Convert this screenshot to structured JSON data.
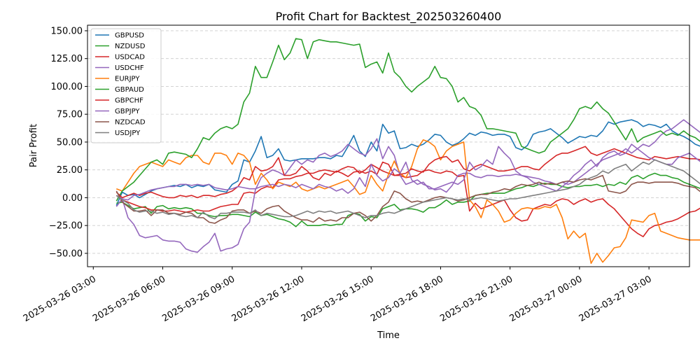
{
  "chart_data": {
    "type": "line",
    "title": "Profit Chart for Backtest_202503260400",
    "xlabel": "Time",
    "ylabel": "Pair Profit",
    "x_start": "2025-03-26 04:00",
    "x_step_minutes": 15,
    "xlim": [
      "2025-03-26 02:45",
      "2025-03-27 04:45"
    ],
    "ylim": [
      -62,
      155
    ],
    "x_ticks": [
      {
        "label": "2025-03-26 03:00",
        "time": "2025-03-26 03:00"
      },
      {
        "label": "2025-03-26 06:00",
        "time": "2025-03-26 06:00"
      },
      {
        "label": "2025-03-26 09:00",
        "time": "2025-03-26 09:00"
      },
      {
        "label": "2025-03-26 12:00",
        "time": "2025-03-26 12:00"
      },
      {
        "label": "2025-03-26 15:00",
        "time": "2025-03-26 15:00"
      },
      {
        "label": "2025-03-26 18:00",
        "time": "2025-03-26 18:00"
      },
      {
        "label": "2025-03-26 21:00",
        "time": "2025-03-26 21:00"
      },
      {
        "label": "2025-03-27 00:00",
        "time": "2025-03-27 00:00"
      },
      {
        "label": "2025-03-27 03:00",
        "time": "2025-03-27 03:00"
      }
    ],
    "y_ticks": [
      {
        "label": "150.00",
        "value": 150
      },
      {
        "label": "125.00",
        "value": 125
      },
      {
        "label": "100.00",
        "value": 100
      },
      {
        "label": "75.00",
        "value": 75
      },
      {
        "label": "50.00",
        "value": 50
      },
      {
        "label": "25.00",
        "value": 25
      },
      {
        "label": "0.00",
        "value": 0
      },
      {
        "label": "−25.00",
        "value": -25
      },
      {
        "label": "−50.00",
        "value": -50
      }
    ],
    "grid": "y-dashed",
    "legend_position": "top-left",
    "series": [
      {
        "name": "GBPUSD",
        "color": "#1f77b4",
        "values": [
          -7,
          5,
          2,
          3,
          0,
          3,
          6,
          8,
          9,
          10,
          11,
          10,
          12,
          9,
          11,
          10,
          12,
          7,
          6,
          5,
          12,
          15,
          34,
          32,
          42,
          55,
          36,
          38,
          44,
          34,
          33,
          34,
          35,
          35,
          35,
          36,
          36,
          35,
          38,
          37,
          46,
          56,
          42,
          37,
          50,
          42,
          66,
          58,
          60,
          44,
          45,
          48,
          46,
          48,
          52,
          57,
          56,
          50,
          47,
          49,
          53,
          58,
          56,
          59,
          58,
          56,
          57,
          57,
          55,
          45,
          43,
          47,
          57,
          59,
          60,
          62,
          58,
          54,
          49,
          52,
          55,
          54,
          56,
          55,
          60,
          68,
          66,
          68,
          69,
          70,
          68,
          64,
          66,
          65,
          63,
          66,
          60,
          57,
          55,
          52,
          48,
          46,
          48,
          43
        ]
      },
      {
        "name": "NZDUSD",
        "color": "#2ca02c",
        "values": [
          -5,
          -4,
          -7,
          -10,
          -9,
          -8,
          -14,
          -8,
          -7,
          -10,
          -9,
          -10,
          -9,
          -10,
          -14,
          -14,
          -16,
          -17,
          -16,
          -16,
          -15,
          -15,
          -16,
          -17,
          -13,
          -16,
          -15,
          -17,
          -19,
          -20,
          -22,
          -26,
          -21,
          -25,
          -25,
          -25,
          -24,
          -25,
          -24,
          -24,
          -16,
          -14,
          -15,
          -21,
          -17,
          -18,
          -10,
          -8,
          -6,
          -11,
          -10,
          -10,
          -11,
          -13,
          -9,
          -9,
          -6,
          -2,
          -6,
          -4,
          -4,
          -3,
          2,
          3,
          4,
          4,
          4,
          4,
          6,
          8,
          9,
          11,
          10,
          12,
          13,
          12,
          12,
          10,
          9,
          10,
          10,
          11,
          11,
          12,
          10,
          12,
          11,
          14,
          12,
          18,
          20,
          17,
          20,
          22,
          20,
          20,
          18,
          17,
          14,
          12,
          10,
          8,
          6,
          5
        ]
      },
      {
        "name": "USDCAD",
        "color": "#d62728",
        "values": [
          2,
          -2,
          -4,
          -6,
          -8,
          -9,
          -11,
          -11,
          -12,
          -12,
          -11,
          -12,
          -13,
          -12,
          -11,
          -12,
          -12,
          -10,
          -8,
          -7,
          -6,
          -6,
          4,
          5,
          4,
          8,
          10,
          9,
          16,
          17,
          17,
          19,
          20,
          22,
          22,
          24,
          25,
          24,
          23,
          26,
          28,
          27,
          22,
          25,
          30,
          27,
          24,
          22,
          20,
          20,
          18,
          19,
          20,
          24,
          25,
          23,
          22,
          24,
          23,
          19,
          20,
          -12,
          -5,
          -10,
          -8,
          -6,
          -4,
          -2,
          -11,
          -18,
          -21,
          -20,
          -10,
          -8,
          -6,
          -7,
          -3,
          -1,
          -2,
          -6,
          -3,
          -1,
          -4,
          -2,
          -1,
          -6,
          -10,
          -16,
          -22,
          -28,
          -32,
          -35,
          -28,
          -25,
          -24,
          -22,
          -21,
          -19,
          -16,
          -13,
          -12,
          -9,
          -7,
          -5
        ]
      },
      {
        "name": "USDCHF",
        "color": "#9467bd",
        "values": [
          -8,
          -1,
          -18,
          -24,
          -34,
          -36,
          -35,
          -34,
          -38,
          -39,
          -39,
          -40,
          -46,
          -48,
          -49,
          -44,
          -40,
          -32,
          -48,
          -46,
          -45,
          -42,
          -28,
          -22,
          7,
          18,
          22,
          25,
          23,
          20,
          27,
          34,
          30,
          34,
          32,
          38,
          40,
          37,
          39,
          42,
          48,
          44,
          40,
          38,
          44,
          53,
          35,
          46,
          38,
          20,
          12,
          14,
          16,
          12,
          10,
          7,
          8,
          5,
          11,
          20,
          22,
          22,
          19,
          18,
          20,
          20,
          19,
          20,
          20,
          21,
          20,
          19,
          18,
          17,
          15,
          14,
          12,
          14,
          12,
          14,
          18,
          22,
          26,
          30,
          34,
          36,
          38,
          40,
          44,
          40,
          44,
          48,
          46,
          50,
          56,
          60,
          62,
          66,
          70,
          66,
          62,
          58,
          60,
          59
        ]
      },
      {
        "name": "EURJPY",
        "color": "#ff7f0e",
        "values": [
          8,
          6,
          14,
          22,
          28,
          30,
          32,
          30,
          28,
          34,
          32,
          30,
          36,
          38,
          38,
          32,
          30,
          40,
          40,
          38,
          30,
          40,
          38,
          32,
          12,
          22,
          16,
          8,
          14,
          12,
          10,
          14,
          8,
          6,
          8,
          10,
          8,
          10,
          12,
          14,
          16,
          10,
          3,
          5,
          20,
          12,
          6,
          21,
          33,
          22,
          18,
          28,
          44,
          52,
          50,
          46,
          34,
          42,
          46,
          48,
          50,
          -2,
          -8,
          -18,
          -2,
          -6,
          -12,
          -22,
          -20,
          -14,
          -10,
          -9,
          -10,
          -10,
          -8,
          -9,
          -6,
          -18,
          -37,
          -30,
          -36,
          -32,
          -59,
          -50,
          -58,
          -52,
          -45,
          -44,
          -36,
          -20,
          -21,
          -22,
          -16,
          -14,
          -30,
          -32,
          -34,
          -36,
          -37,
          -38,
          -38,
          -38,
          -38,
          -37
        ]
      },
      {
        "name": "GBPAUD",
        "color": "#2ca02c",
        "values": [
          -3,
          6,
          10,
          14,
          20,
          26,
          32,
          34,
          30,
          40,
          41,
          40,
          39,
          36,
          44,
          54,
          52,
          58,
          62,
          64,
          62,
          66,
          86,
          94,
          118,
          108,
          108,
          122,
          137,
          124,
          130,
          143,
          142,
          125,
          140,
          142,
          141,
          140,
          140,
          139,
          138,
          137,
          138,
          117,
          120,
          122,
          112,
          130,
          113,
          108,
          100,
          95,
          100,
          104,
          108,
          118,
          108,
          107,
          100,
          86,
          90,
          82,
          80,
          74,
          62,
          62,
          61,
          60,
          59,
          58,
          46,
          44,
          42,
          40,
          42,
          50,
          54,
          58,
          62,
          70,
          80,
          82,
          80,
          86,
          80,
          76,
          68,
          60,
          52,
          62,
          50,
          54,
          56,
          58,
          60,
          56,
          58,
          56,
          60,
          56,
          54,
          50,
          48,
          46
        ]
      },
      {
        "name": "GBPCHF",
        "color": "#d62728",
        "values": [
          5,
          0,
          2,
          4,
          2,
          4,
          5,
          3,
          1,
          0,
          0,
          2,
          1,
          2,
          0,
          2,
          2,
          1,
          3,
          4,
          6,
          10,
          18,
          16,
          28,
          24,
          25,
          28,
          36,
          20,
          20,
          22,
          28,
          24,
          18,
          16,
          22,
          20,
          24,
          22,
          19,
          23,
          24,
          22,
          24,
          21,
          32,
          30,
          20,
          21,
          22,
          26,
          24,
          23,
          30,
          34,
          36,
          37,
          32,
          34,
          26,
          24,
          28,
          30,
          28,
          26,
          24,
          24,
          25,
          26,
          28,
          28,
          26,
          25,
          30,
          34,
          38,
          40,
          40,
          42,
          44,
          46,
          40,
          38,
          40,
          42,
          44,
          42,
          40,
          38,
          36,
          35,
          34,
          37,
          36,
          35,
          36,
          37,
          36,
          35,
          35,
          34,
          33,
          32
        ]
      },
      {
        "name": "GBPJPY",
        "color": "#9467bd",
        "values": [
          2,
          -1,
          -2,
          2,
          3,
          5,
          7,
          8,
          9,
          10,
          10,
          12,
          12,
          11,
          12,
          11,
          12,
          9,
          8,
          7,
          8,
          10,
          9,
          8,
          8,
          10,
          11,
          12,
          10,
          12,
          11,
          9,
          12,
          10,
          8,
          12,
          10,
          9,
          6,
          8,
          4,
          8,
          18,
          10,
          30,
          20,
          15,
          18,
          26,
          22,
          32,
          16,
          12,
          14,
          8,
          8,
          10,
          12,
          14,
          12,
          16,
          32,
          25,
          28,
          34,
          30,
          46,
          40,
          35,
          24,
          20,
          18,
          14,
          12,
          10,
          8,
          6,
          10,
          14,
          20,
          24,
          30,
          34,
          28,
          36,
          40,
          42,
          38,
          40,
          48,
          44,
          40,
          36,
          34,
          32,
          30,
          30,
          36,
          38,
          40,
          36,
          32,
          30,
          28
        ]
      },
      {
        "name": "NZDCAD",
        "color": "#8c564b",
        "values": [
          6,
          -4,
          -8,
          -12,
          -12,
          -11,
          -16,
          -11,
          -11,
          -14,
          -14,
          -15,
          -13,
          -14,
          -18,
          -18,
          -22,
          -23,
          -20,
          -18,
          -12,
          -11,
          -11,
          -14,
          -12,
          -14,
          -10,
          -8,
          -7,
          -12,
          -15,
          -18,
          -20,
          -20,
          -22,
          -18,
          -21,
          -20,
          -21,
          -18,
          -18,
          -14,
          -13,
          -16,
          -21,
          -16,
          -8,
          -4,
          6,
          4,
          -1,
          -4,
          -3,
          -4,
          -2,
          0,
          1,
          0,
          -1,
          -3,
          -2,
          0,
          2,
          3,
          3,
          5,
          6,
          8,
          7,
          10,
          12,
          11,
          12,
          14,
          12,
          13,
          12,
          14,
          15,
          14,
          16,
          17,
          16,
          18,
          20,
          6,
          5,
          4,
          6,
          12,
          14,
          14,
          13,
          14,
          14,
          14,
          14,
          13,
          11,
          10,
          9,
          5,
          6,
          6
        ]
      },
      {
        "name": "USDJPY",
        "color": "#7f7f7f",
        "values": [
          2,
          -2,
          -5,
          -11,
          -13,
          -12,
          -12,
          -14,
          -13,
          -15,
          -14,
          -16,
          -17,
          -16,
          -18,
          -13,
          -17,
          -19,
          -14,
          -14,
          -13,
          -13,
          -13,
          -14,
          -11,
          -16,
          -14,
          -15,
          -16,
          -17,
          -17,
          -16,
          -14,
          -12,
          -14,
          -12,
          -13,
          -12,
          -14,
          -13,
          -12,
          -14,
          -16,
          -18,
          -16,
          -16,
          -14,
          -13,
          -14,
          -12,
          -10,
          -8,
          -6,
          -4,
          -3,
          -2,
          -1,
          0,
          -1,
          -2,
          -1,
          -2,
          -1,
          0,
          -1,
          -2,
          -3,
          -2,
          -1,
          -1,
          0,
          1,
          2,
          3,
          4,
          5,
          6,
          7,
          8,
          10,
          12,
          16,
          18,
          20,
          24,
          22,
          26,
          28,
          30,
          24,
          28,
          32,
          30,
          34,
          32,
          30,
          28,
          26,
          24,
          20,
          16,
          12,
          8,
          4
        ]
      }
    ]
  },
  "legend_note": ""
}
